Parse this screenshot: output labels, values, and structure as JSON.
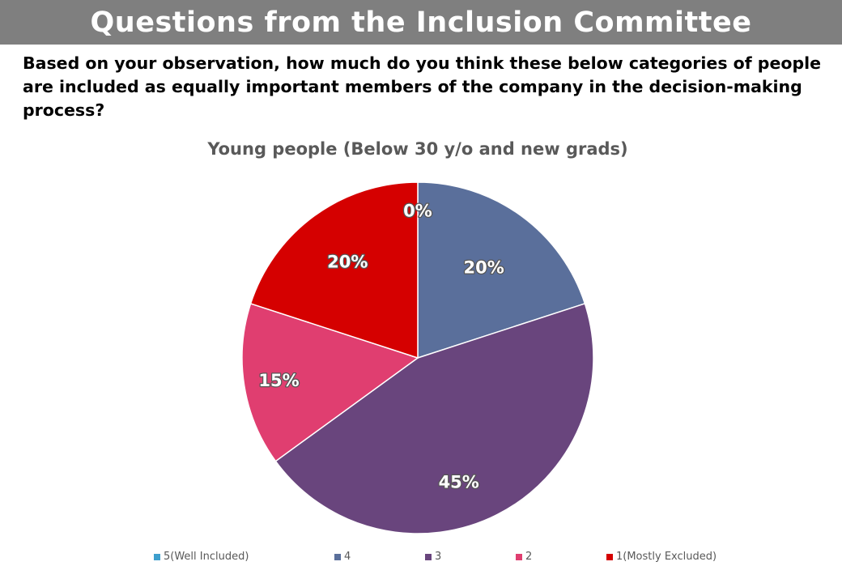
{
  "header": {
    "title": "Questions from the Inclusion Committee"
  },
  "question": "Based on your observation, how much do you think these below categories of people are included as equally important members of the company in the decision-making process?",
  "chart_data": {
    "type": "pie",
    "title": "Young people (Below 30 y/o and new grads)",
    "legend_position": "bottom",
    "slices": [
      {
        "label": "5(Well Included)",
        "value": 0,
        "display": "0%",
        "color": "#3e9fcd"
      },
      {
        "label": "4",
        "value": 20,
        "display": "20%",
        "color": "#5a6f9b"
      },
      {
        "label": "3",
        "value": 45,
        "display": "45%",
        "color": "#69457d"
      },
      {
        "label": "2",
        "value": 15,
        "display": "15%",
        "color": "#e03e70"
      },
      {
        "label": "1(Mostly Excluded)",
        "value": 20,
        "display": "20%",
        "color": "#d50000"
      }
    ]
  }
}
